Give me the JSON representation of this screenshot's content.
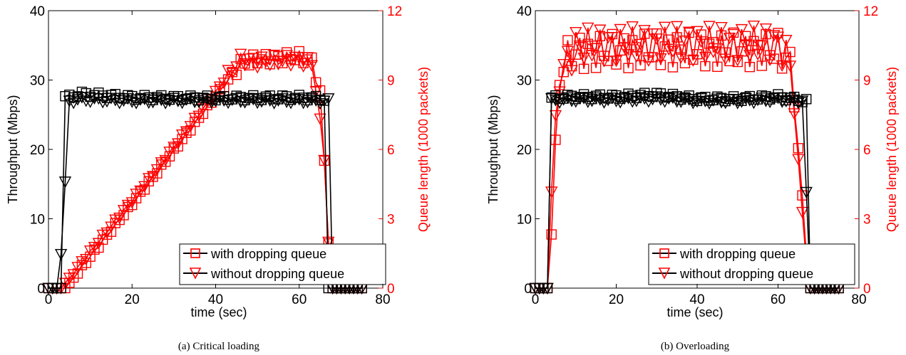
{
  "chart_data": [
    {
      "type": "line",
      "caption": "(a)  Critical loading",
      "xlabel": "time (sec)",
      "ylabel_left": "Throughput (Mbps)",
      "ylabel_right": "Queue length (1000 packets)",
      "xlim": [
        0,
        80
      ],
      "ylim_left": [
        0,
        40
      ],
      "ylim_right": [
        0,
        12
      ],
      "xticks": [
        "0",
        "20",
        "40",
        "60",
        "80"
      ],
      "yticks_left": [
        "0",
        "10",
        "20",
        "30",
        "40"
      ],
      "yticks_right": [
        "0",
        "3",
        "6",
        "9",
        "12"
      ],
      "grid": false,
      "legend_position": "bottom-right",
      "colors": {
        "throughput": "#000000",
        "queue": "#ff0000"
      },
      "series": [
        {
          "name": "with dropping queue",
          "axis": "left",
          "marker": "square",
          "color": "#000000",
          "x": [
            0,
            3,
            4,
            5,
            8,
            20,
            40,
            60,
            66,
            67,
            68,
            75
          ],
          "y": [
            0,
            0,
            27.5,
            27.6,
            28.0,
            27.5,
            27.4,
            27.5,
            27.3,
            0,
            0,
            0
          ]
        },
        {
          "name": "without dropping queue",
          "axis": "left",
          "marker": "triangle-down",
          "color": "#000000",
          "x": [
            0,
            2.5,
            4,
            5,
            8,
            20,
            40,
            60,
            67,
            68,
            75
          ],
          "y": [
            0,
            0,
            15,
            27,
            27.2,
            27.0,
            27.1,
            27.0,
            27.0,
            0,
            0
          ]
        },
        {
          "name": "with dropping queue",
          "axis": "right",
          "marker": "square",
          "color": "#ff0000",
          "x": [
            0,
            4,
            25,
            46,
            50,
            60,
            63,
            65,
            66,
            67,
            68,
            75
          ],
          "y": [
            0,
            0,
            4.8,
            9.7,
            9.9,
            10.0,
            9.8,
            8.5,
            5.5,
            2,
            0,
            0
          ]
        },
        {
          "name": "without dropping queue",
          "axis": "right",
          "marker": "triangle-down",
          "color": "#ff0000",
          "x": [
            0,
            3,
            25,
            46,
            50,
            60,
            63,
            64.5,
            65.5,
            66,
            66.5,
            67,
            68,
            75
          ],
          "y": [
            0,
            0,
            4.9,
            9.9,
            9.8,
            9.9,
            9.7,
            8,
            6.5,
            5.6,
            4.5,
            2,
            0,
            0
          ]
        }
      ]
    },
    {
      "type": "line",
      "caption": "(b)  Overloading",
      "xlabel": "time (sec)",
      "ylabel_left": "Throughput (Mbps)",
      "ylabel_right": "Queue length (1000 packets)",
      "xlim": [
        0,
        80
      ],
      "ylim_left": [
        0,
        40
      ],
      "ylim_right": [
        0,
        12
      ],
      "xticks": [
        "0",
        "20",
        "40",
        "60",
        "80"
      ],
      "yticks_left": [
        "0",
        "10",
        "20",
        "30",
        "40"
      ],
      "yticks_right": [
        "0",
        "3",
        "6",
        "9",
        "12"
      ],
      "grid": false,
      "legend_position": "bottom-right",
      "colors": {
        "throughput": "#000000",
        "queue": "#ff0000"
      },
      "series": [
        {
          "name": "with dropping queue",
          "axis": "left",
          "marker": "square",
          "color": "#000000",
          "x": [
            0,
            3,
            4,
            5,
            10,
            20,
            30,
            40,
            50,
            60,
            67,
            68,
            75
          ],
          "y": [
            0,
            0,
            27.3,
            27.5,
            27.6,
            27.6,
            27.9,
            27.3,
            27.3,
            27.6,
            27.0,
            0,
            0
          ]
        },
        {
          "name": "without dropping queue",
          "axis": "left",
          "marker": "triangle-down",
          "color": "#000000",
          "x": [
            0,
            3,
            4,
            5,
            10,
            20,
            30,
            40,
            50,
            60,
            66.5,
            67.5,
            75
          ],
          "y": [
            0,
            0,
            27.0,
            27.1,
            27.2,
            27.1,
            27.3,
            27.0,
            27.0,
            27.2,
            27.0,
            0,
            0
          ]
        },
        {
          "name": "with dropping queue",
          "axis": "right",
          "marker": "square",
          "color": "#ff0000",
          "x": [
            0,
            3.5,
            4.5,
            5.5,
            6.5,
            10,
            30,
            60,
            63,
            64.5,
            65.5,
            66.5,
            67.5,
            75
          ],
          "y": [
            0,
            0,
            4.8,
            7.9,
            9.8,
            10.2,
            10.3,
            10.3,
            9.7,
            7,
            5,
            3,
            0,
            0
          ]
        },
        {
          "name": "without dropping queue",
          "axis": "right",
          "marker": "triangle-down",
          "color": "#ff0000",
          "x": [
            0,
            3,
            3.5,
            4.5,
            5.5,
            10,
            30,
            60,
            63,
            64.5,
            65.5,
            66.5,
            67.5,
            75
          ],
          "y": [
            0,
            0,
            2.6,
            5.8,
            9.0,
            10.5,
            10.6,
            10.6,
            9.8,
            6.5,
            4.5,
            2.2,
            0,
            0
          ]
        }
      ]
    }
  ]
}
